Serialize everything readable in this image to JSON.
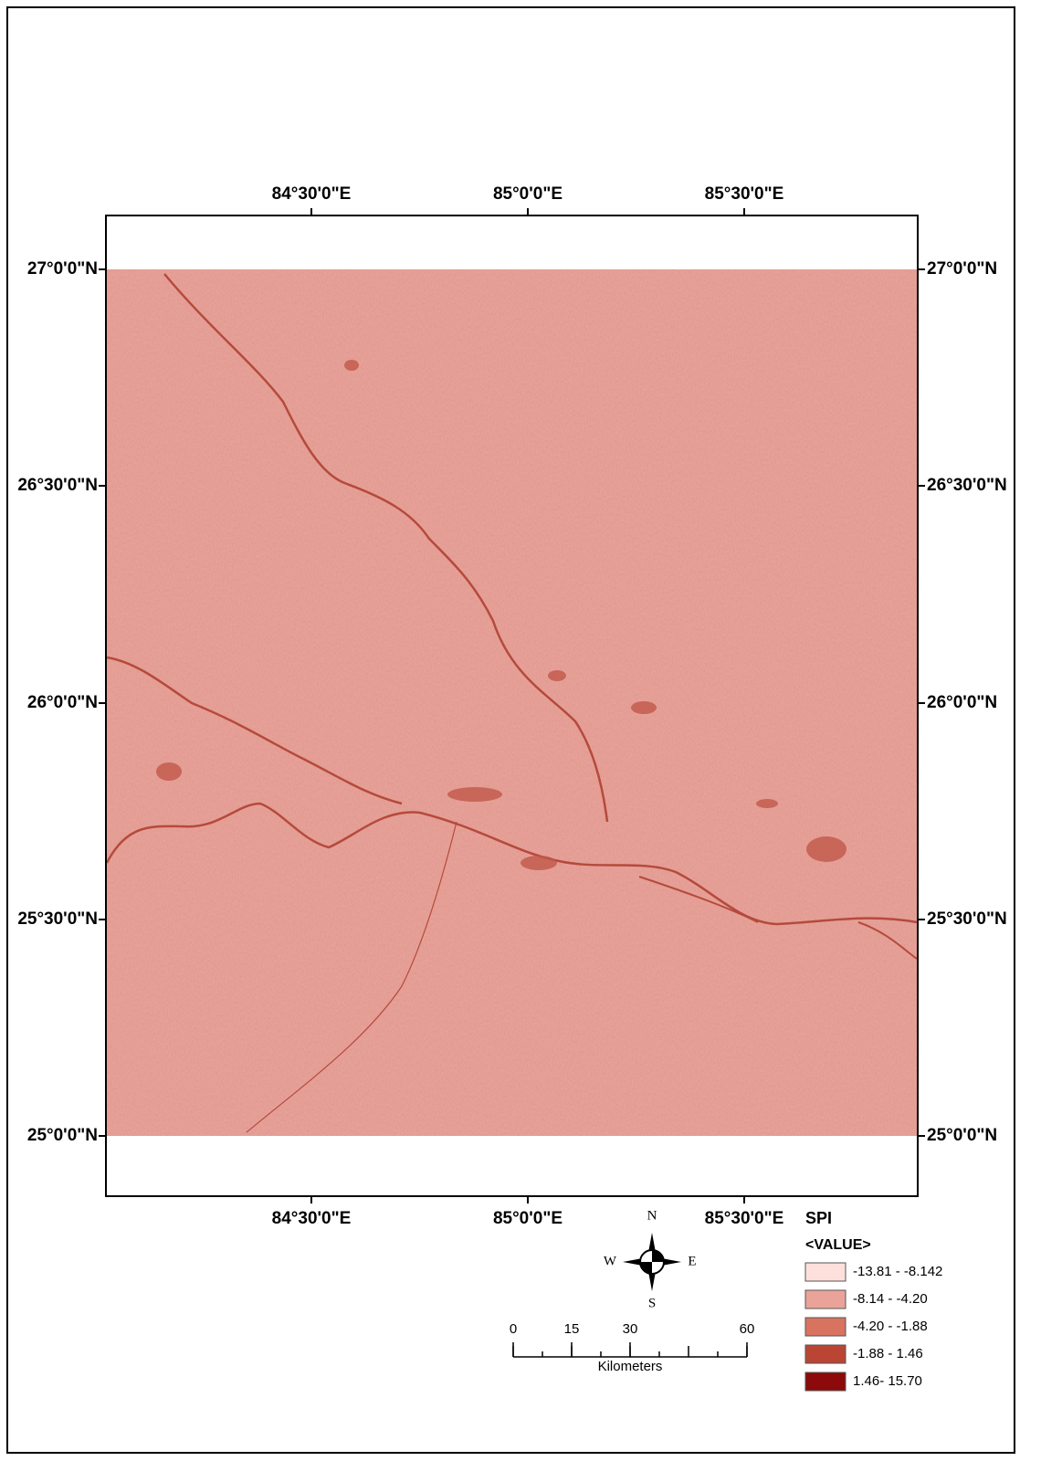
{
  "map": {
    "lon_labels_top": [
      "84°30'0\"E",
      "85°0'0\"E",
      "85°30'0\"E"
    ],
    "lon_labels_bottom": [
      "84°30'0\"E",
      "85°0'0\"E",
      "85°30'0\"E"
    ],
    "lat_labels_left": [
      "27°0'0\"N",
      "26°30'0\"N",
      "26°0'0\"N",
      "25°30'0\"N",
      "25°0'0\"N"
    ],
    "lat_labels_right": [
      "27°0'0\"N",
      "26°30'0\"N",
      "26°0'0\"N",
      "25°30'0\"N",
      "25°0'0\"N"
    ]
  },
  "north_arrow": {
    "n": "N",
    "e": "E",
    "s": "S",
    "w": "W"
  },
  "scale_bar": {
    "ticks": [
      0,
      15,
      30,
      60
    ],
    "unit": "Kilometers"
  },
  "legend": {
    "title": "SPI",
    "field": "<VALUE>",
    "classes": [
      {
        "label": "-13.81 - -8.142",
        "color": "#fde0dc"
      },
      {
        "label": "-8.14 - -4.20",
        "color": "#eaa398"
      },
      {
        "label": "-4.20 - -1.88",
        "color": "#d8735f"
      },
      {
        "label": "-1.88 - 1.46",
        "color": "#bb4535"
      },
      {
        "label": "1.46- 15.70",
        "color": "#8c0a0a"
      }
    ]
  }
}
